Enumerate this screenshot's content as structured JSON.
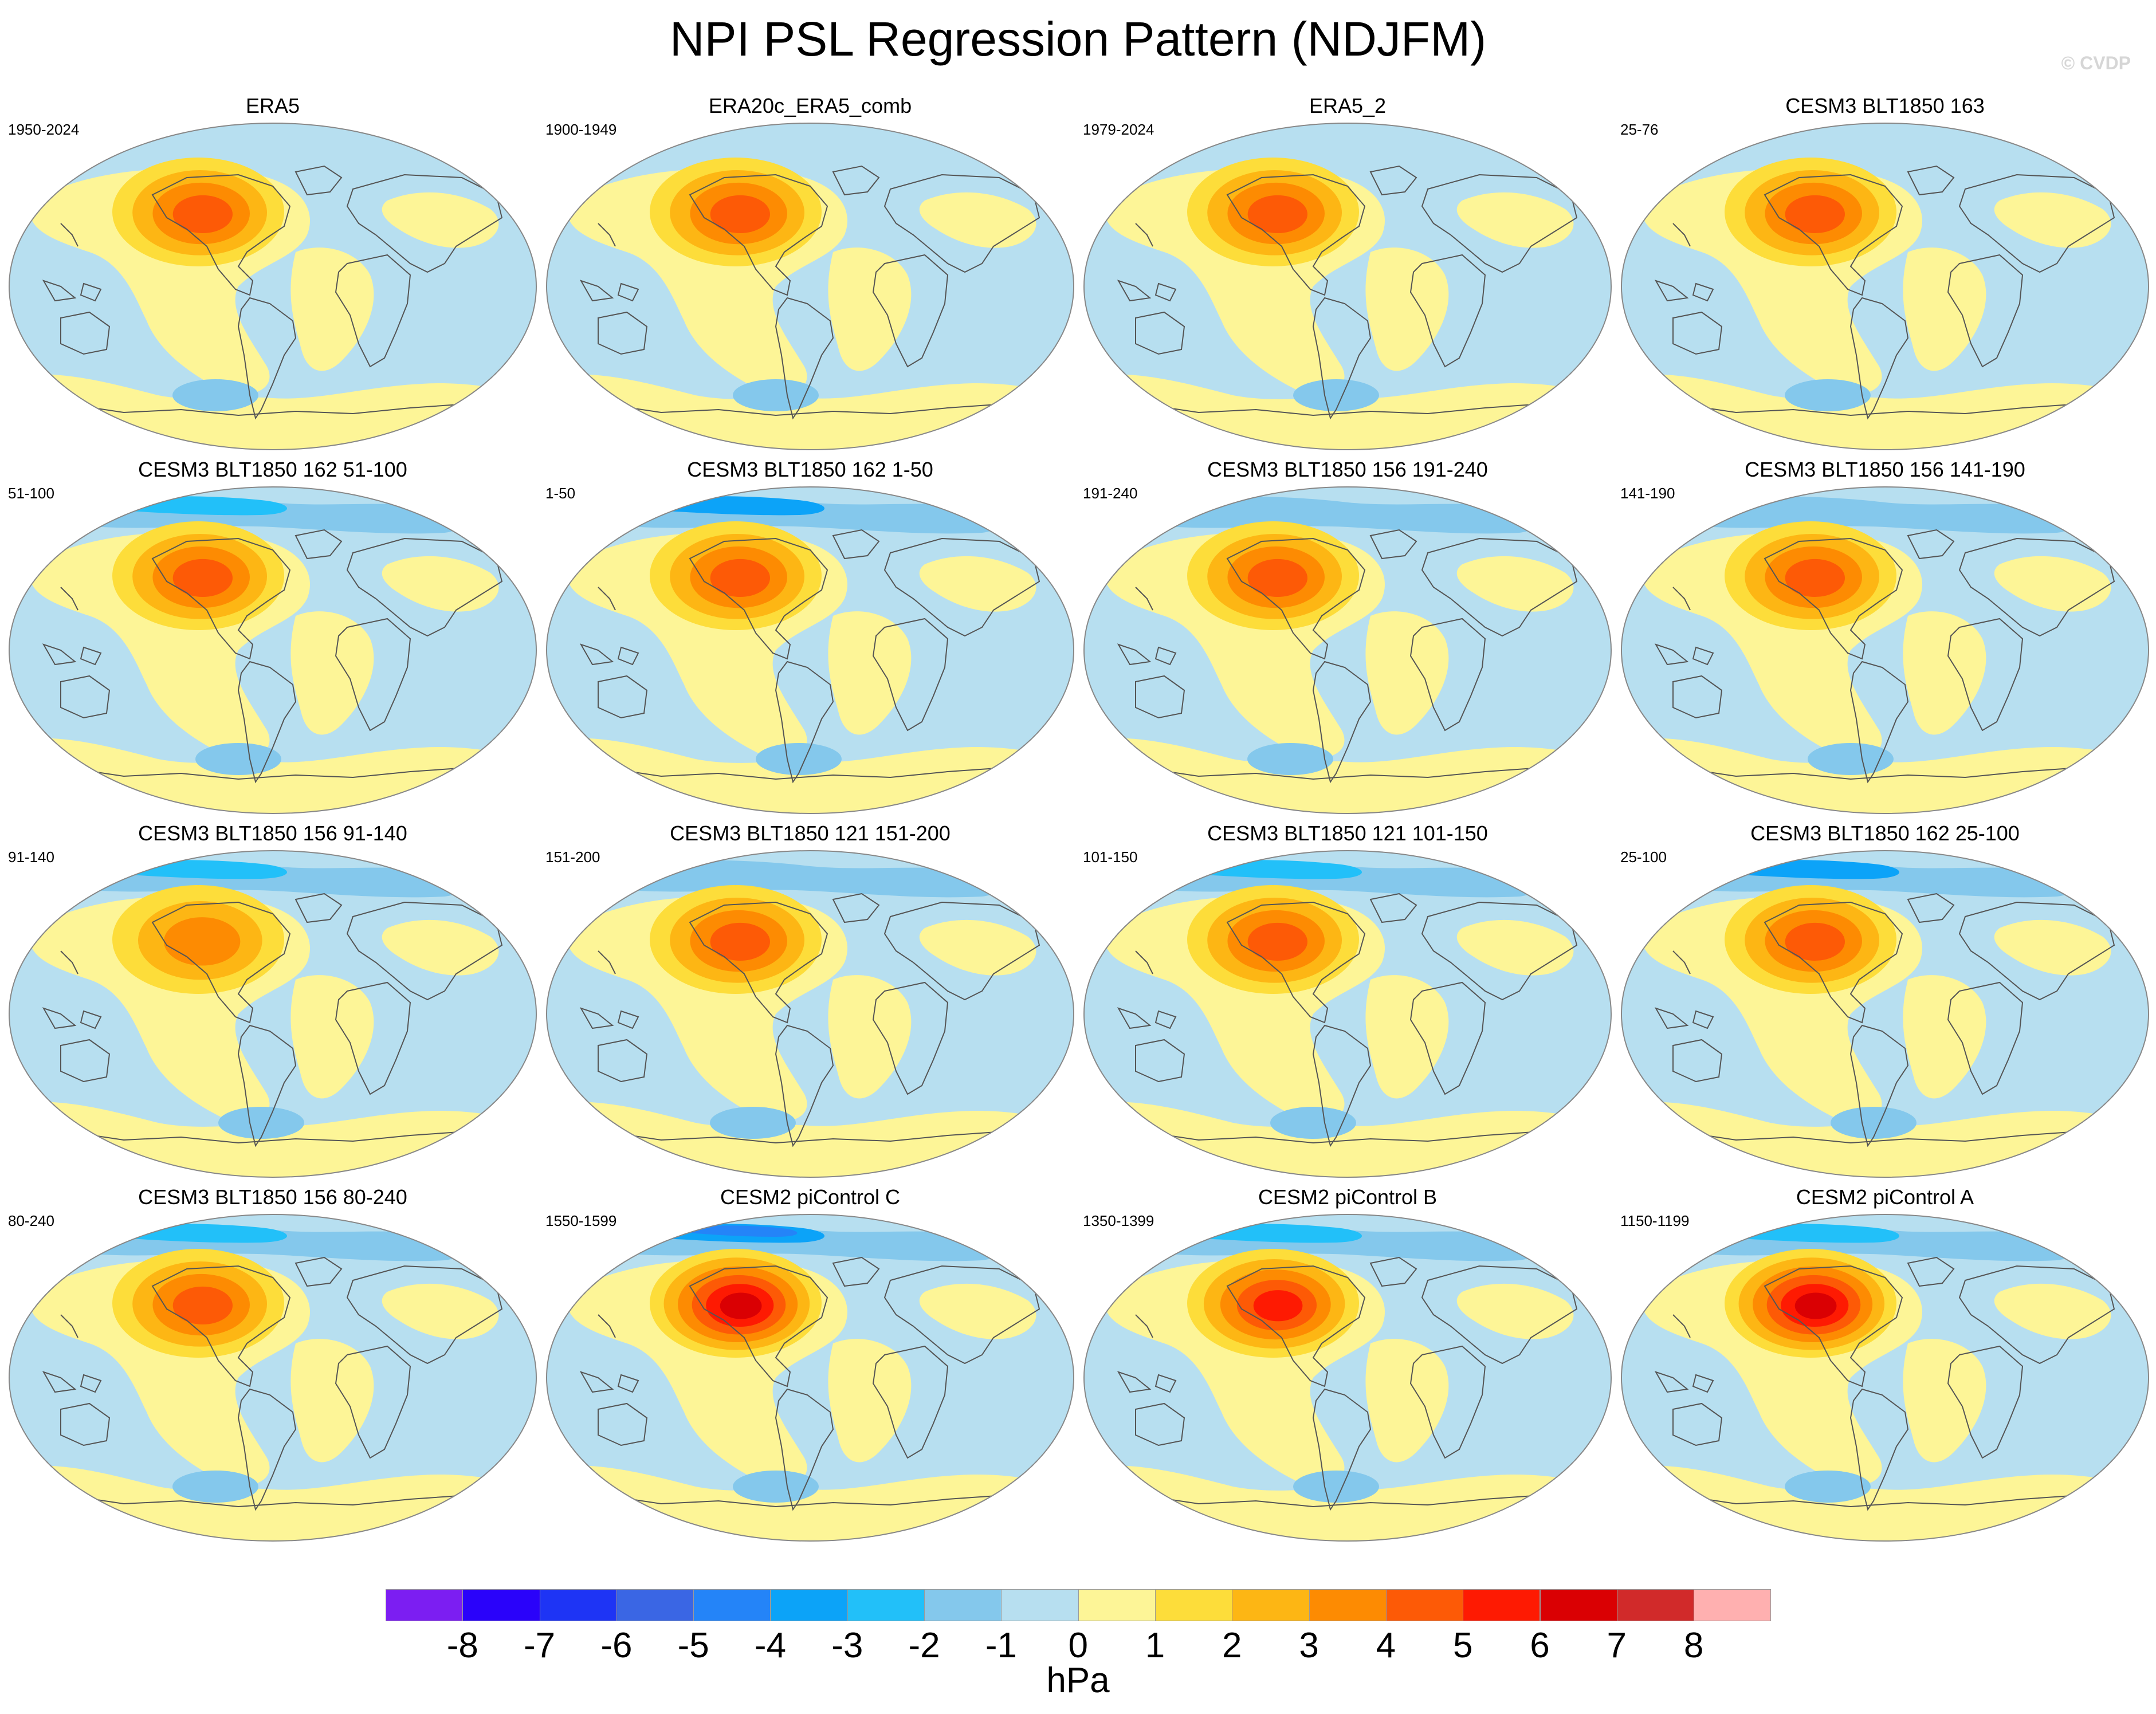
{
  "figure": {
    "title": "NPI PSL Regression Pattern (NDJFM)",
    "watermark": "© CVDP"
  },
  "colors": {
    "ocean_negative": "#b7dff0",
    "positive_light": "#fdf597",
    "contour_levels": [
      "#fddd3a",
      "#fdb614",
      "#fd8b02",
      "#fd5a06",
      "#fe1a02",
      "#da0003",
      "#d12a2a",
      "#ffb0b0"
    ],
    "negative_levels": [
      "#84c8ec",
      "#22c0f9",
      "#0ca3f8",
      "#2484f8",
      "#3a66e4",
      "#1e34f5",
      "#2a02fa",
      "#7c1ef2"
    ],
    "coastline": "#555555",
    "map_border": "#888888"
  },
  "chart_data": {
    "type": "contour-map-grid",
    "projection": "Robinson-like global",
    "variable": "PSL regression on NPI",
    "season": "NDJFM",
    "panels": [
      {
        "title": "ERA5",
        "years": "1950-2024",
        "npi_peak_hpa": 4,
        "arctic_min_hpa": 0
      },
      {
        "title": "ERA20c_ERA5_comb",
        "years": "1900-1949",
        "npi_peak_hpa": 4,
        "arctic_min_hpa": 0
      },
      {
        "title": "ERA5_2",
        "years": "1979-2024",
        "npi_peak_hpa": 4,
        "arctic_min_hpa": 0
      },
      {
        "title": "CESM3 BLT1850 163",
        "years": "25-76",
        "npi_peak_hpa": 4,
        "arctic_min_hpa": 0
      },
      {
        "title": "CESM3 BLT1850 162 51-100",
        "years": "51-100",
        "npi_peak_hpa": 4,
        "arctic_min_hpa": -2
      },
      {
        "title": "CESM3 BLT1850 162 1-50",
        "years": "1-50",
        "npi_peak_hpa": 4,
        "arctic_min_hpa": -3
      },
      {
        "title": "CESM3 BLT1850 156 191-240",
        "years": "191-240",
        "npi_peak_hpa": 4,
        "arctic_min_hpa": -1
      },
      {
        "title": "CESM3 BLT1850 156 141-190",
        "years": "141-190",
        "npi_peak_hpa": 4,
        "arctic_min_hpa": -1
      },
      {
        "title": "CESM3 BLT1850 156 91-140",
        "years": "91-140",
        "npi_peak_hpa": 3,
        "arctic_min_hpa": -2
      },
      {
        "title": "CESM3 BLT1850 121 151-200",
        "years": "151-200",
        "npi_peak_hpa": 4,
        "arctic_min_hpa": -1
      },
      {
        "title": "CESM3 BLT1850 121 101-150",
        "years": "101-150",
        "npi_peak_hpa": 4,
        "arctic_min_hpa": -2
      },
      {
        "title": "CESM3 BLT1850 162 25-100",
        "years": "25-100",
        "npi_peak_hpa": 4,
        "arctic_min_hpa": -3
      },
      {
        "title": "CESM3 BLT1850 156 80-240",
        "years": "80-240",
        "npi_peak_hpa": 4,
        "arctic_min_hpa": -2
      },
      {
        "title": "CESM2 piControl C",
        "years": "1550-1599",
        "npi_peak_hpa": 6,
        "arctic_min_hpa": -4
      },
      {
        "title": "CESM2 piControl B",
        "years": "1350-1399",
        "npi_peak_hpa": 5,
        "arctic_min_hpa": -2
      },
      {
        "title": "CESM2 piControl A",
        "years": "1150-1199",
        "npi_peak_hpa": 6,
        "arctic_min_hpa": -2
      }
    ],
    "colorbar": {
      "labels": [
        "-8",
        "-7",
        "-6",
        "-5",
        "-4",
        "-3",
        "-2",
        "-1",
        "0",
        "1",
        "2",
        "3",
        "4",
        "5",
        "6",
        "7",
        "8"
      ],
      "colors": [
        "#7c1ef2",
        "#2a02fa",
        "#1e34f5",
        "#3a66e4",
        "#2484f8",
        "#0ca3f8",
        "#22c0f9",
        "#84c8ec",
        "#b7dff0",
        "#fdf597",
        "#fddd3a",
        "#fdb614",
        "#fd8b02",
        "#fd5a06",
        "#fe1a02",
        "#da0003",
        "#d12a2a",
        "#ffb0b0"
      ],
      "units": "hPa"
    }
  }
}
